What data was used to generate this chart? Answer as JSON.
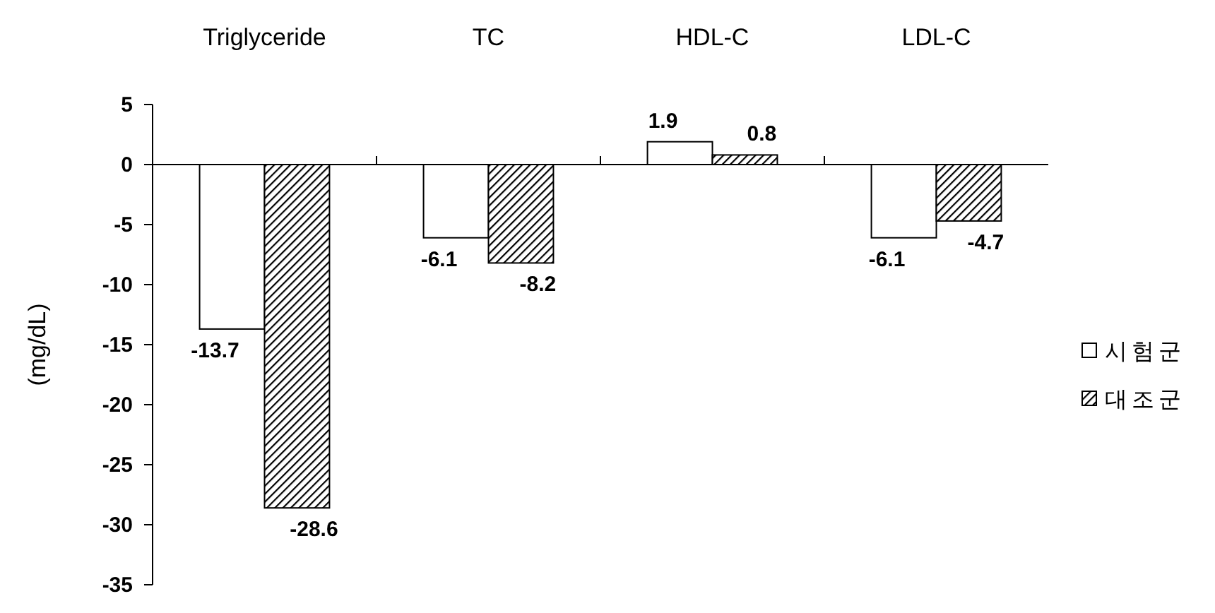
{
  "chart_data": {
    "type": "bar",
    "ylabel": "(mg/dL)",
    "categories": [
      "Triglyceride",
      "TC",
      "HDL-C",
      "LDL-C"
    ],
    "series": [
      {
        "name": "시험군",
        "color": "#ffffff",
        "values": [
          -13.7,
          -6.1,
          1.9,
          -6.1
        ]
      },
      {
        "name": "대조군",
        "color": "#000000",
        "values": [
          -28.6,
          -8.2,
          0.8,
          -4.7
        ]
      }
    ],
    "ylim": [
      -35,
      5
    ],
    "yticks": [
      -35,
      -30,
      -25,
      -20,
      -15,
      -10,
      -5,
      0,
      5
    ],
    "data_labels": true,
    "legend": "right"
  }
}
